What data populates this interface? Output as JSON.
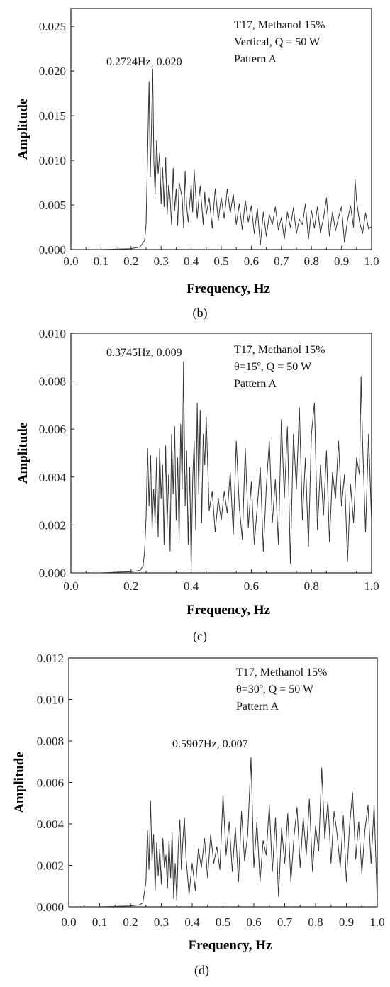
{
  "chart_data": [
    {
      "type": "line",
      "panel_label": "(b)",
      "xlabel": "Frequency, Hz",
      "ylabel": "Amplitude",
      "xlim": [
        0,
        1
      ],
      "ylim": [
        0,
        0.027
      ],
      "xticks": [
        "0.0",
        "0.1",
        "0.2",
        "0.3",
        "0.4",
        "0.5",
        "0.6",
        "0.7",
        "0.8",
        "0.9",
        "1.0"
      ],
      "yticks": [
        "0.000",
        "0.005",
        "0.010",
        "0.015",
        "0.020",
        "0.025"
      ],
      "annotation": "0.2724Hz, 0.020",
      "legend_lines": [
        "T17, Methanol 15%",
        "Vertical, Q = 50 W",
        "Pattern A"
      ],
      "series": [
        {
          "x": [
            0.0,
            0.1,
            0.2,
            0.23,
            0.245,
            0.25,
            0.255,
            0.26,
            0.264,
            0.268,
            0.272,
            0.276,
            0.28,
            0.285,
            0.29,
            0.295,
            0.3,
            0.305,
            0.31,
            0.315,
            0.32,
            0.325,
            0.33,
            0.335,
            0.34,
            0.345,
            0.35,
            0.355,
            0.36,
            0.37,
            0.375,
            0.38,
            0.385,
            0.39,
            0.4,
            0.405,
            0.41,
            0.42,
            0.425,
            0.43,
            0.44,
            0.445,
            0.45,
            0.46,
            0.47,
            0.48,
            0.49,
            0.5,
            0.51,
            0.52,
            0.53,
            0.54,
            0.55,
            0.56,
            0.57,
            0.58,
            0.59,
            0.6,
            0.61,
            0.62,
            0.63,
            0.64,
            0.65,
            0.66,
            0.67,
            0.68,
            0.69,
            0.7,
            0.71,
            0.72,
            0.73,
            0.74,
            0.75,
            0.76,
            0.77,
            0.78,
            0.79,
            0.8,
            0.81,
            0.82,
            0.83,
            0.84,
            0.85,
            0.86,
            0.87,
            0.88,
            0.89,
            0.9,
            0.91,
            0.92,
            0.93,
            0.94,
            0.945,
            0.95,
            0.96,
            0.97,
            0.98,
            0.99,
            1.0
          ],
          "y": [
            0.0,
            0.0,
            0.0001,
            0.0003,
            0.001,
            0.0028,
            0.0105,
            0.0188,
            0.0082,
            0.0135,
            0.0202,
            0.0098,
            0.0062,
            0.0122,
            0.0085,
            0.0108,
            0.0051,
            0.0092,
            0.0048,
            0.0103,
            0.0039,
            0.0072,
            0.0058,
            0.0028,
            0.0091,
            0.0044,
            0.0068,
            0.0027,
            0.0075,
            0.0058,
            0.0024,
            0.0088,
            0.0049,
            0.0031,
            0.0072,
            0.0042,
            0.0089,
            0.0035,
            0.0055,
            0.0071,
            0.0028,
            0.0064,
            0.0039,
            0.0058,
            0.0024,
            0.0068,
            0.0033,
            0.0058,
            0.0035,
            0.0068,
            0.0041,
            0.0062,
            0.0028,
            0.0051,
            0.0022,
            0.0055,
            0.0031,
            0.0049,
            0.0018,
            0.0046,
            0.0005,
            0.0042,
            0.0015,
            0.0039,
            0.0028,
            0.0048,
            0.0022,
            0.0036,
            0.0012,
            0.0042,
            0.0025,
            0.0047,
            0.0018,
            0.0034,
            0.0028,
            0.0051,
            0.0012,
            0.0044,
            0.0024,
            0.0048,
            0.0019,
            0.0035,
            0.0058,
            0.0015,
            0.0042,
            0.0021,
            0.0036,
            0.0048,
            0.0008,
            0.0033,
            0.0049,
            0.0025,
            0.0079,
            0.0055,
            0.0031,
            0.0018,
            0.0041,
            0.0023,
            0.0026
          ]
        }
      ]
    },
    {
      "type": "line",
      "panel_label": "(c)",
      "xlabel": "Frequency, Hz",
      "ylabel": "Amplitude",
      "xlim": [
        0,
        1
      ],
      "ylim": [
        0,
        0.01
      ],
      "xticks": [
        "0.0",
        "0.2",
        "0.4",
        "0.6",
        "0.8",
        "1.0"
      ],
      "yticks": [
        "0.000",
        "0.002",
        "0.004",
        "0.006",
        "0.008",
        "0.010"
      ],
      "annotation": "0.3745Hz, 0.009",
      "legend_lines": [
        "T17, Methanol 15%",
        "θ=15º, Q = 50 W",
        "Pattern A"
      ],
      "series": [
        {
          "x": [
            0.0,
            0.1,
            0.2,
            0.23,
            0.24,
            0.245,
            0.25,
            0.255,
            0.26,
            0.265,
            0.27,
            0.275,
            0.28,
            0.285,
            0.29,
            0.295,
            0.3,
            0.305,
            0.31,
            0.315,
            0.32,
            0.325,
            0.33,
            0.335,
            0.34,
            0.345,
            0.35,
            0.355,
            0.36,
            0.365,
            0.37,
            0.3745,
            0.38,
            0.385,
            0.39,
            0.395,
            0.4,
            0.405,
            0.41,
            0.415,
            0.42,
            0.425,
            0.43,
            0.435,
            0.44,
            0.445,
            0.45,
            0.46,
            0.47,
            0.48,
            0.49,
            0.5,
            0.51,
            0.52,
            0.53,
            0.54,
            0.55,
            0.56,
            0.57,
            0.58,
            0.59,
            0.6,
            0.61,
            0.62,
            0.63,
            0.64,
            0.65,
            0.66,
            0.67,
            0.68,
            0.69,
            0.7,
            0.71,
            0.72,
            0.73,
            0.74,
            0.75,
            0.76,
            0.77,
            0.78,
            0.79,
            0.8,
            0.81,
            0.82,
            0.83,
            0.84,
            0.85,
            0.86,
            0.87,
            0.88,
            0.89,
            0.9,
            0.91,
            0.92,
            0.93,
            0.94,
            0.95,
            0.96,
            0.965,
            0.97,
            0.98,
            0.99,
            1.0
          ],
          "y": [
            0.0,
            0.0,
            5e-05,
            0.0001,
            0.0003,
            0.0009,
            0.0023,
            0.0052,
            0.0028,
            0.0049,
            0.0018,
            0.0035,
            0.0021,
            0.0048,
            0.0015,
            0.0052,
            0.0031,
            0.0045,
            0.0012,
            0.0053,
            0.0019,
            0.0041,
            0.0009,
            0.0058,
            0.0033,
            0.0061,
            0.0022,
            0.0048,
            0.0014,
            0.0062,
            0.0035,
            0.0088,
            0.0028,
            0.0051,
            0.0012,
            0.0044,
            0.0002,
            0.0039,
            0.0055,
            0.0018,
            0.0071,
            0.0033,
            0.0068,
            0.0021,
            0.0058,
            0.0045,
            0.0065,
            0.0026,
            0.0034,
            0.0017,
            0.0031,
            0.0022,
            0.0034,
            0.0025,
            0.0042,
            0.0016,
            0.0055,
            0.0028,
            0.0014,
            0.0052,
            0.0019,
            0.0038,
            0.0012,
            0.0028,
            0.0044,
            0.0009,
            0.0036,
            0.0055,
            0.0021,
            0.0039,
            0.0012,
            0.0064,
            0.0031,
            0.0061,
            0.0004,
            0.0058,
            0.0035,
            0.0069,
            0.0022,
            0.0048,
            0.0011,
            0.0058,
            0.0071,
            0.0018,
            0.0045,
            0.0024,
            0.0051,
            0.0013,
            0.0042,
            0.0031,
            0.0055,
            0.0028,
            0.0041,
            0.0005,
            0.0037,
            0.0021,
            0.0048,
            0.0041,
            0.0082,
            0.0055,
            0.0017,
            0.0058,
            0.0021
          ]
        }
      ]
    },
    {
      "type": "line",
      "panel_label": "(d)",
      "xlabel": "Frequency, Hz",
      "ylabel": "Amplitude",
      "xlim": [
        0,
        1
      ],
      "ylim": [
        0,
        0.012
      ],
      "xticks": [
        "0.0",
        "0.1",
        "0.2",
        "0.3",
        "0.4",
        "0.5",
        "0.6",
        "0.7",
        "0.8",
        "0.9",
        "1.0"
      ],
      "yticks": [
        "0.000",
        "0.002",
        "0.004",
        "0.006",
        "0.008",
        "0.010",
        "0.012"
      ],
      "annotation": "0.5907Hz, 0.007",
      "legend_lines": [
        "T17, Methanol 15%",
        "θ=30º, Q = 50 W",
        "Pattern A"
      ],
      "series": [
        {
          "x": [
            0.0,
            0.1,
            0.2,
            0.23,
            0.24,
            0.245,
            0.25,
            0.255,
            0.26,
            0.265,
            0.27,
            0.275,
            0.28,
            0.285,
            0.29,
            0.295,
            0.3,
            0.305,
            0.31,
            0.315,
            0.32,
            0.325,
            0.33,
            0.335,
            0.34,
            0.345,
            0.35,
            0.355,
            0.36,
            0.365,
            0.37,
            0.375,
            0.38,
            0.39,
            0.4,
            0.41,
            0.42,
            0.43,
            0.44,
            0.45,
            0.46,
            0.47,
            0.48,
            0.49,
            0.5,
            0.51,
            0.52,
            0.53,
            0.54,
            0.55,
            0.56,
            0.57,
            0.58,
            0.5907,
            0.6,
            0.61,
            0.62,
            0.63,
            0.64,
            0.65,
            0.66,
            0.67,
            0.68,
            0.69,
            0.7,
            0.71,
            0.72,
            0.73,
            0.74,
            0.75,
            0.76,
            0.77,
            0.78,
            0.79,
            0.8,
            0.81,
            0.82,
            0.83,
            0.84,
            0.85,
            0.86,
            0.87,
            0.88,
            0.89,
            0.9,
            0.91,
            0.92,
            0.93,
            0.94,
            0.95,
            0.96,
            0.97,
            0.98,
            0.99,
            1.0
          ],
          "y": [
            0.0,
            0.0,
            4e-05,
            0.0001,
            0.0002,
            0.0007,
            0.0012,
            0.0037,
            0.0018,
            0.0051,
            0.0022,
            0.0035,
            0.0008,
            0.0031,
            0.0015,
            0.0028,
            0.0011,
            0.0033,
            0.0019,
            0.0025,
            0.0009,
            0.0032,
            0.0014,
            0.0036,
            0.0004,
            0.0021,
            0.0003,
            0.0029,
            0.0042,
            0.0018,
            0.0032,
            0.0043,
            0.0024,
            0.0006,
            0.0021,
            0.0008,
            0.0028,
            0.0019,
            0.0033,
            0.0014,
            0.0035,
            0.0021,
            0.0029,
            0.0018,
            0.0054,
            0.0025,
            0.0041,
            0.0017,
            0.0038,
            0.0012,
            0.0046,
            0.0022,
            0.0035,
            0.0072,
            0.0019,
            0.0041,
            0.0012,
            0.0032,
            0.0025,
            0.0049,
            0.0017,
            0.0043,
            0.0005,
            0.0038,
            0.0021,
            0.0045,
            0.0012,
            0.0034,
            0.0048,
            0.0019,
            0.0043,
            0.0025,
            0.0052,
            0.0017,
            0.0039,
            0.0027,
            0.0067,
            0.0033,
            0.0051,
            0.0021,
            0.0046,
            0.0035,
            0.0019,
            0.0044,
            0.0012,
            0.0039,
            0.0055,
            0.0023,
            0.0041,
            0.0016,
            0.0037,
            0.0049,
            0.0021,
            0.0049,
            0.0002
          ]
        }
      ]
    }
  ]
}
